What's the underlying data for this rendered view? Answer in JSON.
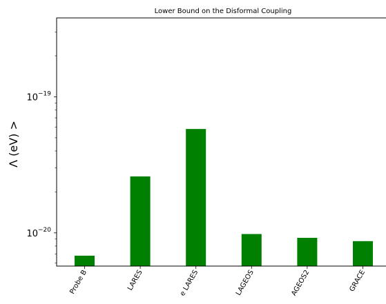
{
  "chart_data": {
    "type": "bar",
    "title": "Lower Bound on the Disformal Coupling",
    "ylabel": "Λ (eV) >",
    "xlabel": "",
    "yscale": "log",
    "ylim": [
      5.7e-21,
      3.8e-19
    ],
    "categories": [
      "Probe B",
      "LARES",
      "e LARES",
      "LAGEOS",
      "AGEOS2",
      "GRACE"
    ],
    "values": [
      6.8e-21,
      2.6e-20,
      5.8e-20,
      9.8e-21,
      9.2e-21,
      8.7e-21
    ],
    "y_ticks": [
      {
        "value": 1e-19,
        "base": "10",
        "exp": "−19"
      },
      {
        "value": 1e-20,
        "base": "10",
        "exp": "−20"
      }
    ],
    "bar_color": "#008000",
    "grid": false,
    "legend": "none"
  }
}
